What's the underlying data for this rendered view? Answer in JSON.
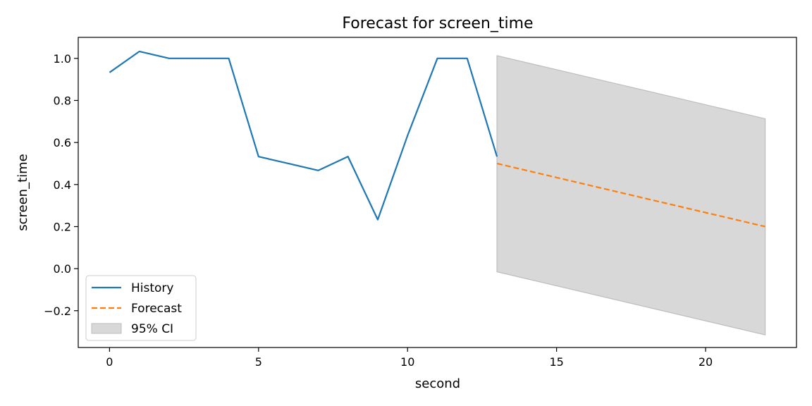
{
  "chart_data": {
    "type": "line",
    "title": "Forecast for screen_time",
    "xlabel": "second",
    "ylabel": "screen_time",
    "xlim": [
      -1.05,
      23.05
    ],
    "ylim": [
      -0.375,
      1.1
    ],
    "xticks": [
      0,
      5,
      10,
      15,
      20
    ],
    "xtick_labels": [
      "0",
      "5",
      "10",
      "15",
      "20"
    ],
    "yticks": [
      -0.2,
      0.0,
      0.2,
      0.4,
      0.6,
      0.8,
      1.0
    ],
    "ytick_labels": [
      "−0.2",
      "0.0",
      "0.2",
      "0.4",
      "0.6",
      "0.8",
      "1.0"
    ],
    "grid": false,
    "legend_position": "lower-left",
    "series": [
      {
        "name": "History",
        "color": "#1f77b4",
        "style": "solid",
        "x": [
          0,
          1,
          2,
          3,
          4,
          5,
          6,
          7,
          8,
          9,
          10,
          11,
          12,
          13
        ],
        "y": [
          0.933,
          1.033,
          1.0,
          1.0,
          1.0,
          0.533,
          0.5,
          0.467,
          0.533,
          0.233,
          0.633,
          1.0,
          1.0,
          0.533
        ]
      },
      {
        "name": "Forecast",
        "color": "#ff7f0e",
        "style": "dashed",
        "x": [
          13,
          22
        ],
        "y": [
          0.5,
          0.2
        ]
      }
    ],
    "confidence_interval": {
      "name": "95% CI",
      "color": "#d8d8d8",
      "edge_color": "#bdbdbd",
      "x": [
        13,
        22
      ],
      "lower": [
        -0.015,
        -0.315
      ],
      "upper": [
        1.013,
        0.713
      ]
    }
  }
}
